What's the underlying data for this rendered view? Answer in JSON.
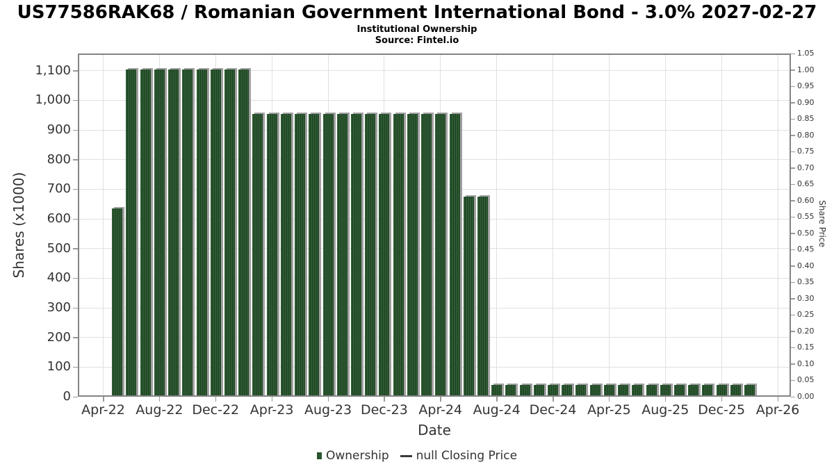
{
  "title": "US77586RAK68 / Romanian Government International Bond - 3.0% 2027-02-27",
  "subtitle": "Institutional Ownership",
  "source": "Source: Fintel.io",
  "colors": {
    "bar_green": "#2a5530",
    "bar_stripe_light": "#2e5a33",
    "bar_stripe_dark": "#1d4121",
    "bar_shadow": "#a0a0a0",
    "grid": "#e0e0e0",
    "axis_frame": "#848484",
    "tick": "#999999",
    "text": "#333333"
  },
  "chart_data": {
    "type": "bar",
    "title": "US77586RAK68 / Romanian Government International Bond - 3.0% 2027-02-27",
    "subtitle": "Institutional Ownership",
    "source": "Source: Fintel.io",
    "xlabel": "Date",
    "ylabel_left": "Shares (x1000)",
    "ylabel_right": "Share Price",
    "ylim_left": [
      0,
      1158
    ],
    "ylim_right": [
      0.0,
      1.05
    ],
    "grid": true,
    "legend_position": "bottom",
    "x_ticks": [
      "Apr-22",
      "Aug-22",
      "Dec-22",
      "Apr-23",
      "Aug-23",
      "Dec-23",
      "Apr-24",
      "Aug-24",
      "Dec-24",
      "Apr-25",
      "Aug-25",
      "Dec-25",
      "Apr-26"
    ],
    "y_ticks_left": [
      "0",
      "100",
      "200",
      "300",
      "400",
      "500",
      "600",
      "700",
      "800",
      "900",
      "1,000",
      "1,100"
    ],
    "y_ticks_right": [
      "0.00",
      "0.05",
      "0.10",
      "0.15",
      "0.20",
      "0.25",
      "0.30",
      "0.35",
      "0.40",
      "0.45",
      "0.50",
      "0.55",
      "0.60",
      "0.65",
      "0.70",
      "0.75",
      "0.80",
      "0.85",
      "0.90",
      "0.95",
      "1.00",
      "1.05"
    ],
    "series": [
      {
        "name": "Ownership",
        "x": [
          "May-22",
          "Jun-22",
          "Jul-22",
          "Aug-22",
          "Sep-22",
          "Oct-22",
          "Nov-22",
          "Dec-22",
          "Jan-23",
          "Feb-23",
          "Mar-23",
          "Apr-23",
          "May-23",
          "Jun-23",
          "Jul-23",
          "Aug-23",
          "Sep-23",
          "Oct-23",
          "Nov-23",
          "Dec-23",
          "Jan-24",
          "Feb-24",
          "Mar-24",
          "Apr-24",
          "May-24",
          "Jun-24",
          "Jul-24",
          "Aug-24",
          "Sep-24",
          "Oct-24",
          "Nov-24",
          "Dec-24",
          "Jan-25",
          "Feb-25",
          "Mar-25",
          "Apr-25",
          "May-25",
          "Jun-25",
          "Jul-25",
          "Aug-25",
          "Sep-25",
          "Oct-25",
          "Nov-25",
          "Dec-25",
          "Jan-26",
          "Feb-26"
        ],
        "values": [
          635,
          1105,
          1105,
          1105,
          1105,
          1105,
          1105,
          1105,
          1105,
          1105,
          955,
          955,
          955,
          955,
          955,
          955,
          955,
          955,
          955,
          955,
          955,
          955,
          955,
          955,
          955,
          675,
          675,
          40,
          40,
          40,
          40,
          40,
          40,
          40,
          40,
          40,
          40,
          40,
          40,
          40,
          40,
          40,
          40,
          40,
          40,
          40
        ]
      },
      {
        "name": "null Closing Price",
        "x": [],
        "values": []
      }
    ]
  },
  "legend": {
    "ownership_label": "Ownership",
    "price_label": "null Closing Price"
  }
}
